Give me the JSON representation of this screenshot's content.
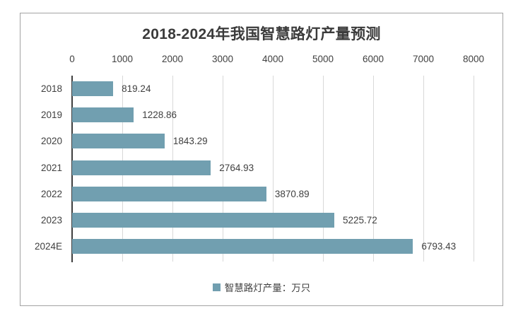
{
  "chart_data": {
    "type": "bar",
    "orientation": "horizontal",
    "title": "2018-2024年我国智慧路灯产量预测",
    "categories": [
      "2018",
      "2019",
      "2020",
      "2021",
      "2022",
      "2023",
      "2024E"
    ],
    "values": [
      819.24,
      1228.86,
      1843.29,
      2764.93,
      3870.89,
      5225.72,
      6793.43
    ],
    "value_labels": [
      "819.24",
      "1228.86",
      "1843.29",
      "2764.93",
      "3870.89",
      "5225.72",
      "6793.43"
    ],
    "xlabel": "",
    "ylabel": "",
    "x_axis": {
      "position": "top",
      "min": 0,
      "max": 8000,
      "tick_step": 1000,
      "ticks": [
        "0",
        "1000",
        "2000",
        "3000",
        "4000",
        "5000",
        "6000",
        "7000",
        "8000"
      ]
    },
    "grid": "vertical",
    "legend": {
      "position": "bottom",
      "entries": [
        {
          "label": "智慧路灯产量：万只",
          "color": "#719FB0"
        }
      ]
    },
    "colors": {
      "bar": "#719FB0",
      "gridline": "#D8D8D8",
      "axis_line": "#3F3F3F",
      "text": "#3F3F3F",
      "border": "#A3A3A3",
      "background": "#FFFFFF"
    }
  }
}
